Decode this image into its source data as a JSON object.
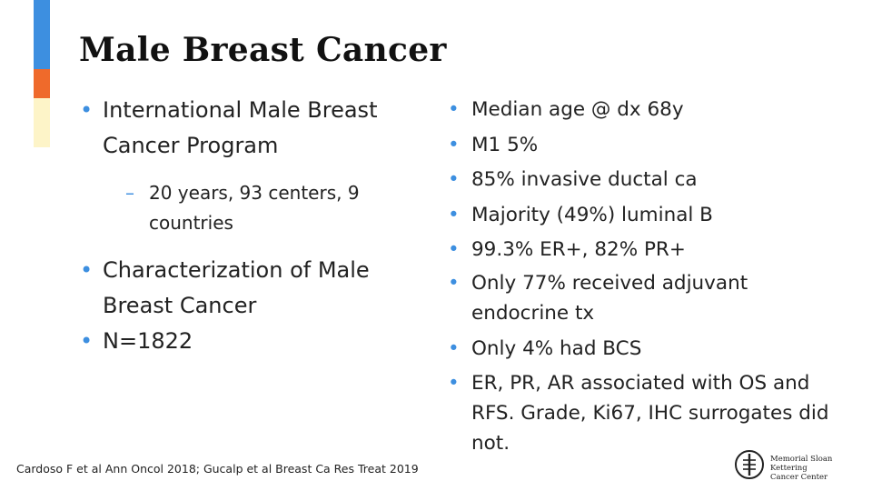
{
  "slide": {
    "title": "Male Breast Cancer",
    "left_bullets": [
      {
        "text": "International Male Breast Cancer Program"
      },
      {
        "text": "Characterization of Male Breast Cancer"
      },
      {
        "text": "N=1822"
      }
    ],
    "left_sub_bullets": [
      {
        "text": "20 years, 93 centers, 9 countries"
      }
    ],
    "right_bullets": [
      {
        "text": "Median age @ dx 68y"
      },
      {
        "text": "M1 5%"
      },
      {
        "text": "85% invasive ductal ca"
      },
      {
        "text": "Majority (49%) luminal B"
      },
      {
        "text": "99.3% ER+, 82% PR+"
      },
      {
        "text": "Only 77% received adjuvant endocrine tx"
      },
      {
        "text": "Only 4% had BCS"
      },
      {
        "text": "ER, PR, AR associated with OS and RFS. Grade, Ki67, IHC surrogates did not."
      }
    ],
    "footer": "Cardoso F et al Ann Oncol 2018; Gucalp et al Breast Ca Res Treat 2019",
    "logo": {
      "line1": "Memorial Sloan Kettering",
      "line2": "Cancer Center"
    }
  },
  "colors": {
    "accent_blue": "#3d8fe0",
    "accent_orange": "#ef6a2b",
    "accent_cream": "#fdf4c8"
  }
}
